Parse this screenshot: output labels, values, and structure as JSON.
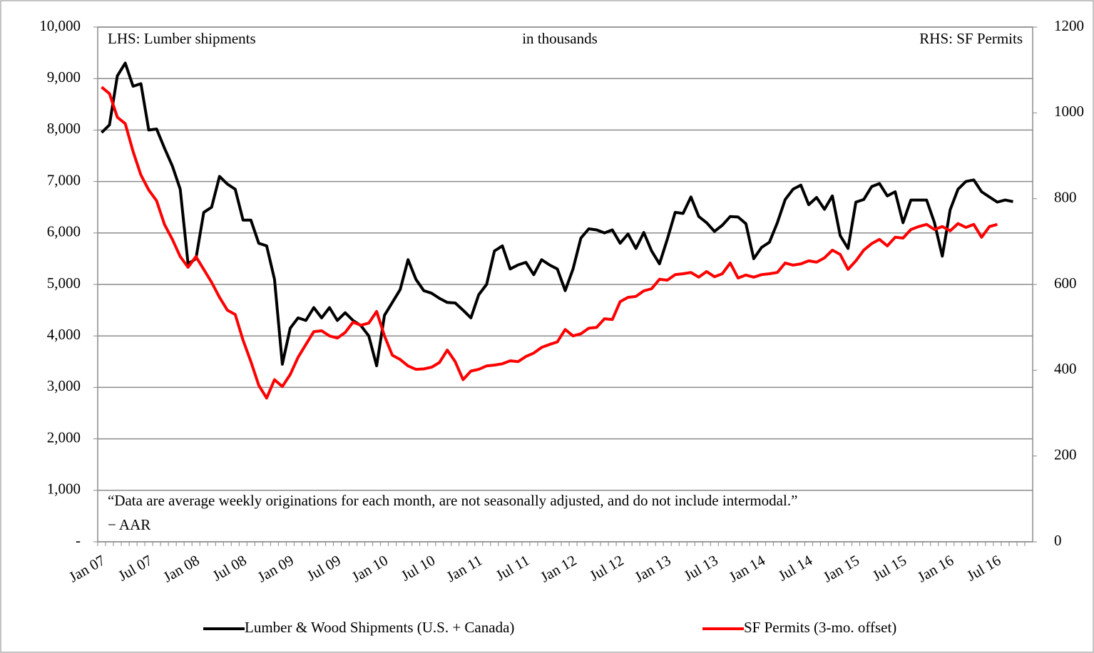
{
  "chart_data": {
    "type": "line",
    "annotations": [
      "LHS: Lumber shipments",
      "in thousands",
      "RHS: SF Permits",
      "“Data are average weekly originations for each month, are not seasonally adjusted, and do not include intermodal.”",
      "− AAR"
    ],
    "categories": [
      "Jan 07",
      null,
      null,
      null,
      null,
      null,
      "Jul 07",
      null,
      null,
      null,
      null,
      null,
      "Jan 08",
      null,
      null,
      null,
      null,
      null,
      "Jul 08",
      null,
      null,
      null,
      null,
      null,
      "Jan 09",
      null,
      null,
      null,
      null,
      null,
      "Jul 09",
      null,
      null,
      null,
      null,
      null,
      "Jan 10",
      null,
      null,
      null,
      null,
      null,
      "Jul 10",
      null,
      null,
      null,
      null,
      null,
      "Jan 11",
      null,
      null,
      null,
      null,
      null,
      "Jul 11",
      null,
      null,
      null,
      null,
      null,
      "Jan 12",
      null,
      null,
      null,
      null,
      null,
      "Jul 12",
      null,
      null,
      null,
      null,
      null,
      "Jan 13",
      null,
      null,
      null,
      null,
      null,
      "Jul 13",
      null,
      null,
      null,
      null,
      null,
      "Jan 14",
      null,
      null,
      null,
      null,
      null,
      "Jul 14",
      null,
      null,
      null,
      null,
      null,
      "Jan 15",
      null,
      null,
      null,
      null,
      null,
      "Jul 15",
      null,
      null,
      null,
      null,
      null,
      "Jan 16",
      null,
      null,
      null,
      null,
      null,
      "Jul 16",
      null,
      null,
      null,
      null
    ],
    "series": [
      {
        "name": "Lumber & Wood Shipments (U.S. + Canada)",
        "color": "#000000",
        "values": [
          7950,
          8100,
          9050,
          9300,
          8850,
          8900,
          8000,
          8020,
          7650,
          7300,
          6850,
          5400,
          5500,
          6400,
          6500,
          7100,
          6950,
          6850,
          6250,
          6250,
          5800,
          5750,
          5100,
          3450,
          4150,
          4350,
          4300,
          4550,
          4350,
          4550,
          4300,
          4450,
          4300,
          4200,
          4000,
          3420,
          4400,
          4650,
          4900,
          5480,
          5100,
          4880,
          4830,
          4730,
          4650,
          4640,
          4500,
          4350,
          4800,
          5000,
          5650,
          5750,
          5300,
          5380,
          5430,
          5190,
          5480,
          5380,
          5300,
          4880,
          5300,
          5900,
          6080,
          6060,
          6000,
          6060,
          5800,
          5980,
          5700,
          6010,
          5650,
          5400,
          5880,
          6400,
          6380,
          6700,
          6320,
          6200,
          6030,
          6150,
          6320,
          6310,
          6180,
          5500,
          5720,
          5820,
          6200,
          6650,
          6850,
          6930,
          6550,
          6690,
          6460,
          6720,
          5950,
          5700,
          6600,
          6650,
          6900,
          6960,
          6720,
          6800,
          6200,
          6640,
          6640,
          6640,
          6200,
          5550,
          6450,
          6850,
          7000,
          7030,
          6800,
          6700,
          6600,
          6640,
          6610,
          null,
          null
        ]
      },
      {
        "name": "SF Permits (3-mo. offset)",
        "color": "#ff0000",
        "axis": "y2",
        "values": [
          1060,
          1045,
          990,
          975,
          910,
          855,
          820,
          795,
          740,
          705,
          665,
          640,
          665,
          635,
          605,
          570,
          540,
          530,
          470,
          420,
          365,
          335,
          378,
          362,
          390,
          430,
          460,
          490,
          492,
          480,
          475,
          488,
          512,
          505,
          510,
          537,
          480,
          435,
          425,
          410,
          402,
          403,
          407,
          418,
          447,
          420,
          378,
          398,
          402,
          410,
          412,
          415,
          422,
          420,
          432,
          440,
          453,
          460,
          466,
          495,
          480,
          485,
          498,
          500,
          520,
          518,
          560,
          570,
          572,
          585,
          590,
          612,
          610,
          623,
          625,
          628,
          617,
          630,
          618,
          625,
          650,
          615,
          622,
          617,
          623,
          625,
          628,
          650,
          645,
          648,
          655,
          652,
          662,
          680,
          670,
          635,
          655,
          680,
          695,
          705,
          690,
          710,
          708,
          728,
          735,
          740,
          728,
          735,
          725,
          742,
          733,
          740,
          710,
          735,
          740,
          null,
          null,
          null,
          null
        ]
      }
    ],
    "ylim": [
      0,
      10000
    ],
    "yticks": [
      {
        "value": 0,
        "label": "-"
      },
      {
        "value": 1000,
        "label": "1,000"
      },
      {
        "value": 2000,
        "label": "2,000"
      },
      {
        "value": 3000,
        "label": "3,000"
      },
      {
        "value": 4000,
        "label": "4,000"
      },
      {
        "value": 5000,
        "label": "5,000"
      },
      {
        "value": 6000,
        "label": "6,000"
      },
      {
        "value": 7000,
        "label": "7,000"
      },
      {
        "value": 8000,
        "label": "8,000"
      },
      {
        "value": 9000,
        "label": "9,000"
      },
      {
        "value": 10000,
        "label": "10,000"
      }
    ],
    "y2lim": [
      0,
      1200
    ],
    "y2ticks": [
      0,
      200,
      400,
      600,
      800,
      1000,
      1200
    ],
    "grid": true,
    "legend": "bottom"
  }
}
